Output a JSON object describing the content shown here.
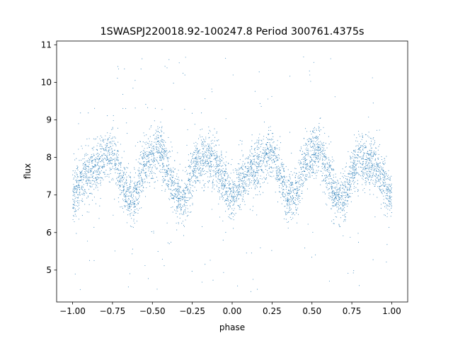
{
  "chart_data": {
    "type": "scatter",
    "title": "1SWASPJ220018.92-100247.8 Period 300761.4375s",
    "xlabel": "phase",
    "ylabel": "flux",
    "xlim": [
      -1.1,
      1.1
    ],
    "ylim": [
      4.15,
      11.1
    ],
    "xticks": [
      -1.0,
      -0.75,
      -0.5,
      -0.25,
      0.0,
      0.25,
      0.5,
      0.75,
      1.0
    ],
    "xtick_labels": [
      "−1.00",
      "−0.75",
      "−0.50",
      "−0.25",
      "0.00",
      "0.25",
      "0.50",
      "0.75",
      "1.00"
    ],
    "yticks": [
      5,
      6,
      7,
      8,
      9,
      10,
      11
    ],
    "ytick_labels": [
      "5",
      "6",
      "7",
      "8",
      "9",
      "10",
      "11"
    ],
    "grid": false,
    "legend": "none",
    "point_color": "#1f77b4",
    "phase_range": [
      -1.0,
      1.0
    ],
    "folded_profile": {
      "note": "Light curve folded twice over phase -1 to 1 (period repeats every 1.0 in phase).",
      "phase": [
        0.0,
        0.05,
        0.1,
        0.15,
        0.2,
        0.25,
        0.3,
        0.35,
        0.4,
        0.45,
        0.5,
        0.55,
        0.6,
        0.65,
        0.7,
        0.75,
        0.8,
        0.85,
        0.9,
        0.95,
        1.0
      ],
      "median_flux": [
        6.9,
        7.4,
        7.55,
        7.75,
        8.0,
        8.1,
        7.5,
        6.95,
        7.0,
        7.9,
        8.0,
        8.3,
        7.5,
        7.0,
        6.9,
        7.6,
        7.95,
        7.9,
        7.8,
        7.3,
        6.9
      ],
      "scatter_sigma": 0.35,
      "outlier_range": [
        4.4,
        10.7
      ]
    }
  }
}
